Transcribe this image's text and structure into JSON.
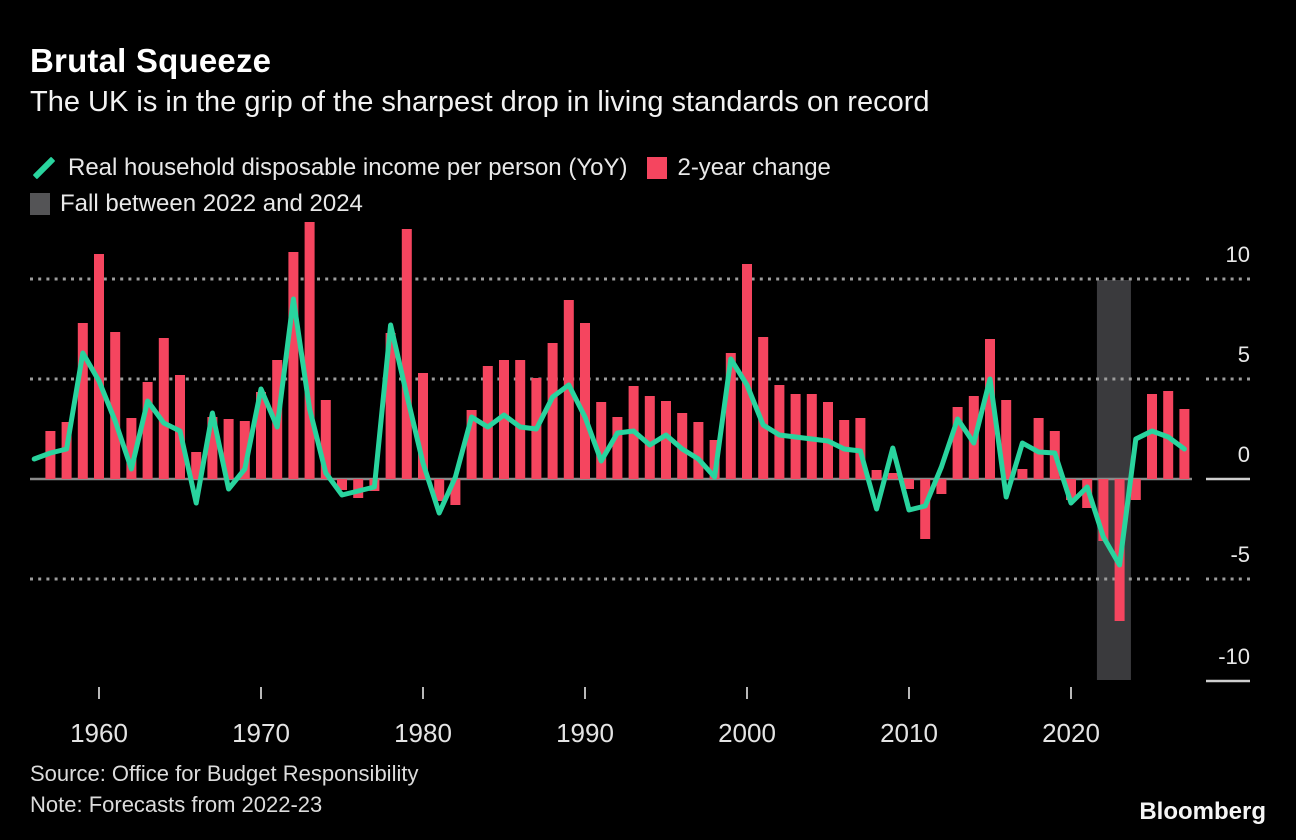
{
  "header": {
    "title": "Brutal Squeeze",
    "subtitle": "The UK is in the grip of the sharpest drop in living standards on record"
  },
  "legend": [
    {
      "label": "Real household disposable income per person (YoY)",
      "swatch": "line",
      "color": "#29d49e"
    },
    {
      "label": "2-year change",
      "swatch": "square",
      "color": "#f5455f"
    },
    {
      "label": "Fall between 2022 and 2024",
      "swatch": "square",
      "color": "#545456"
    }
  ],
  "chart_data": {
    "type": "bar",
    "title": "Brutal Squeeze",
    "xlabel": "",
    "ylabel": "",
    "ylim": [
      -10.5,
      13
    ],
    "grid": "dotted-horizontal",
    "legend_position": "top",
    "x_ticks": [
      1960,
      1970,
      1980,
      1990,
      2000,
      2010,
      2020
    ],
    "y_ticks": [
      10,
      5,
      0,
      -5,
      -10
    ],
    "y_tick_labels": [
      "10",
      "5",
      "0",
      "-5",
      "-10"
    ],
    "series": [
      {
        "name": "Real household disposable income per person (YoY)",
        "type": "line",
        "color": "#29d49e",
        "start_year": 1956,
        "values": [
          1.0,
          1.3,
          1.5,
          6.3,
          4.9,
          2.9,
          0.5,
          3.9,
          2.8,
          2.4,
          -1.2,
          3.3,
          -0.5,
          0.5,
          4.5,
          2.6,
          9.0,
          3.5,
          0.3,
          -0.8,
          -0.6,
          -0.4,
          7.7,
          4.2,
          0.8,
          -1.7,
          0.1,
          3.1,
          2.6,
          3.2,
          2.6,
          2.5,
          4.1,
          4.7,
          3.1,
          0.9,
          2.3,
          2.4,
          1.7,
          2.2,
          1.5,
          1.0,
          0.1,
          6.0,
          4.7,
          2.7,
          2.2,
          2.1,
          2.0,
          1.9,
          1.5,
          1.4,
          -1.5,
          1.55,
          -1.55,
          -1.35,
          0.6,
          3.0,
          1.8,
          5.0,
          -0.9,
          1.8,
          1.35,
          1.3,
          -1.2,
          -0.4,
          -2.9,
          -4.3,
          2.0,
          2.4,
          2.1,
          1.5
        ]
      },
      {
        "name": "2-year change",
        "type": "bar",
        "color": "#f5455f",
        "start_year": 1957,
        "values": [
          2.4,
          2.85,
          7.8,
          11.25,
          7.35,
          3.05,
          4.85,
          7.05,
          5.2,
          1.35,
          3.1,
          3.0,
          2.9,
          4.35,
          5.95,
          11.35,
          12.85,
          3.95,
          -0.55,
          -0.95,
          -0.6,
          7.3,
          12.5,
          5.3,
          -1.1,
          -1.3,
          3.45,
          5.65,
          5.95,
          5.95,
          5.05,
          6.8,
          8.95,
          7.8,
          3.85,
          3.1,
          4.65,
          4.15,
          3.9,
          3.3,
          2.85,
          1.95,
          6.3,
          10.75,
          7.1,
          4.7,
          4.25,
          4.25,
          3.85,
          2.95,
          3.05,
          0.45,
          0.3,
          -0.5,
          -3.0,
          -0.75,
          3.6,
          4.15,
          7.0,
          3.95,
          0.5,
          3.05,
          2.4,
          -1.05,
          -1.45,
          -3.1,
          -7.1,
          -1.05,
          4.25,
          4.4,
          3.5
        ]
      }
    ],
    "highlight": {
      "label": "Fall between 2022 and 2024",
      "from_year": 2021.6,
      "to_year": 2023.7,
      "color": "#3a3a3d"
    }
  },
  "source": {
    "line1": "Source: Office for Budget Responsibility",
    "line2": "Note: Forecasts from 2022-23"
  },
  "brand": "Bloomberg"
}
